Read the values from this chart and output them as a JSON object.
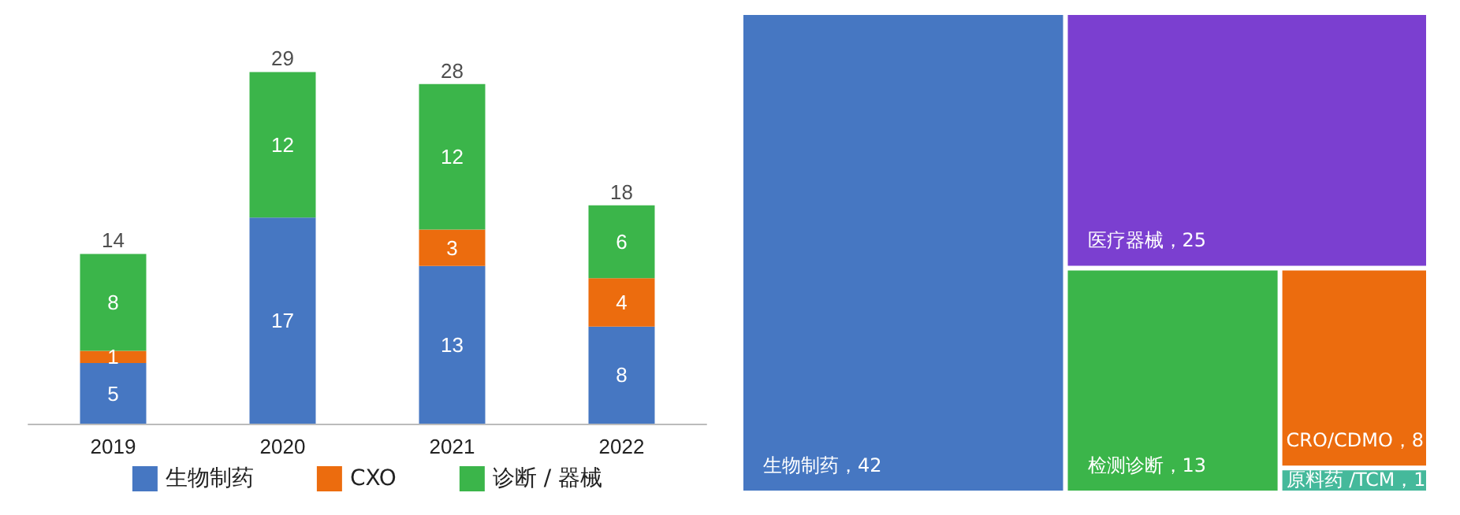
{
  "chart_data": [
    {
      "type": "bar",
      "stacked": true,
      "categories": [
        "2019",
        "2020",
        "2021",
        "2022"
      ],
      "series": [
        {
          "name": "生物制药",
          "color": "#4677c2",
          "values": [
            5,
            17,
            13,
            8
          ],
          "value_labels": [
            "5",
            "17",
            "13",
            "8"
          ]
        },
        {
          "name": "CXO",
          "color": "#ec6c0e",
          "values": [
            1,
            0,
            3,
            4
          ],
          "value_labels": [
            "1",
            null,
            "3",
            "4"
          ]
        },
        {
          "name": "诊断 / 器械",
          "color": "#3bb54a",
          "values": [
            8,
            12,
            12,
            6
          ],
          "value_labels": [
            "8",
            "12",
            "12",
            "6"
          ]
        }
      ],
      "totals": [
        "14",
        "29",
        "28",
        "18"
      ],
      "legend": "bottom",
      "grid": false
    },
    {
      "type": "other",
      "categories": [
        "生物制药",
        "医疗器械",
        "检测诊断",
        "CRO/CDMO",
        "原料药 /TCM"
      ],
      "values": [
        42,
        25,
        13,
        8,
        1
      ],
      "value_labels": [
        "，42",
        "，25",
        "，13",
        "，8",
        "，1"
      ],
      "colors": [
        "#4677c2",
        "#7b3fd0",
        "#3bb54a",
        "#ec6c0e",
        "#45b99b"
      ]
    }
  ]
}
